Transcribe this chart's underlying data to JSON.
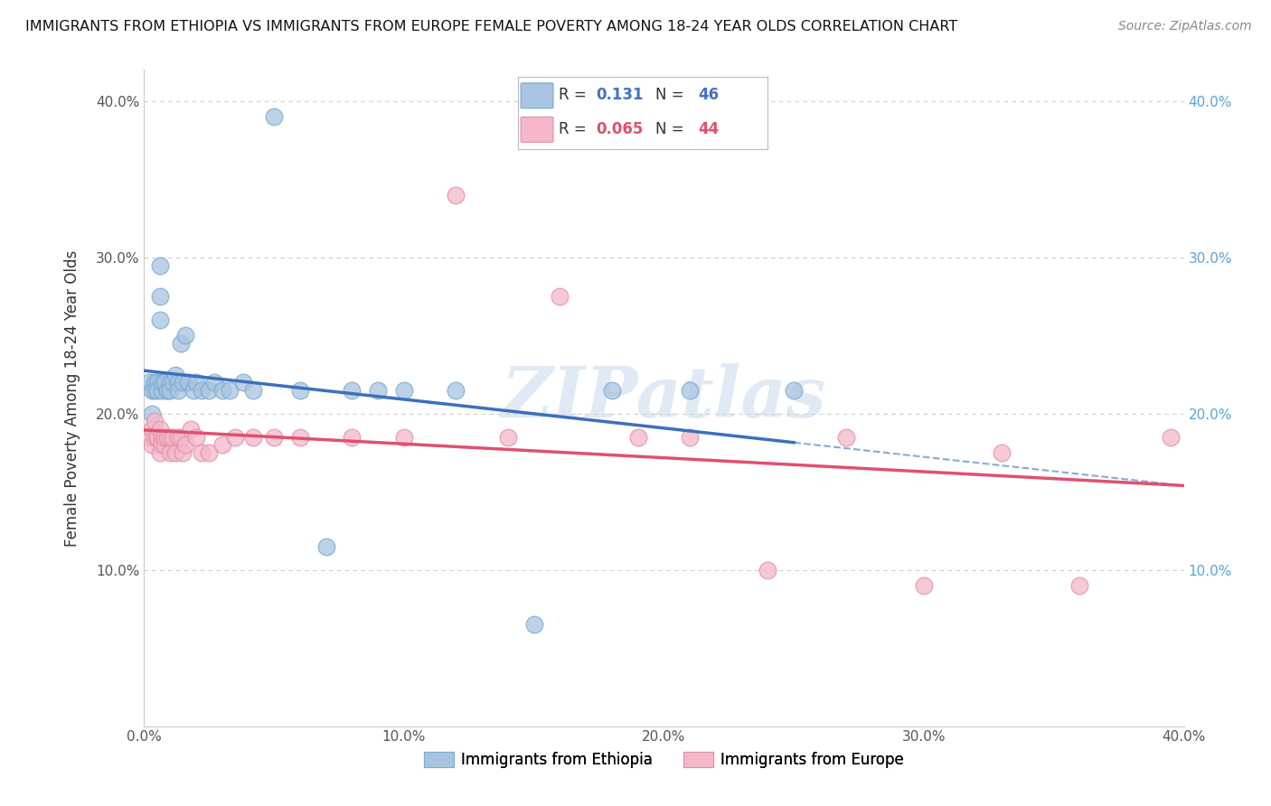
{
  "title": "IMMIGRANTS FROM ETHIOPIA VS IMMIGRANTS FROM EUROPE FEMALE POVERTY AMONG 18-24 YEAR OLDS CORRELATION CHART",
  "source": "Source: ZipAtlas.com",
  "ylabel": "Female Poverty Among 18-24 Year Olds",
  "xlim": [
    0.0,
    0.4
  ],
  "ylim": [
    0.0,
    0.42
  ],
  "x_ticks": [
    0.0,
    0.1,
    0.2,
    0.3,
    0.4
  ],
  "x_tick_labels": [
    "0.0%",
    "10.0%",
    "20.0%",
    "30.0%",
    "40.0%"
  ],
  "y_ticks": [
    0.1,
    0.2,
    0.3,
    0.4
  ],
  "y_tick_labels": [
    "10.0%",
    "20.0%",
    "30.0%",
    "40.0%"
  ],
  "eth_R": "0.131",
  "eth_N": "46",
  "eur_R": "0.065",
  "eur_N": "44",
  "eth_color": "#a8c4e0",
  "eth_edge": "#7aaad0",
  "eur_color": "#f4b8c8",
  "eur_edge": "#e090a8",
  "eth_line_color": "#3c6fbe",
  "eur_line_color": "#e05070",
  "grid_color": "#cccccc",
  "background_color": "#ffffff",
  "watermark": "ZIPatlas",
  "ethiopia_x": [
    0.002,
    0.003,
    0.003,
    0.004,
    0.004,
    0.005,
    0.005,
    0.006,
    0.006,
    0.006,
    0.007,
    0.007,
    0.008,
    0.008,
    0.009,
    0.009,
    0.01,
    0.01,
    0.011,
    0.012,
    0.013,
    0.013,
    0.014,
    0.015,
    0.016,
    0.017,
    0.019,
    0.02,
    0.022,
    0.025,
    0.027,
    0.03,
    0.033,
    0.038,
    0.042,
    0.05,
    0.06,
    0.07,
    0.08,
    0.09,
    0.1,
    0.12,
    0.15,
    0.18,
    0.21,
    0.25
  ],
  "ethiopia_y": [
    0.22,
    0.215,
    0.2,
    0.22,
    0.215,
    0.22,
    0.215,
    0.295,
    0.275,
    0.26,
    0.215,
    0.22,
    0.22,
    0.22,
    0.215,
    0.215,
    0.22,
    0.215,
    0.22,
    0.225,
    0.22,
    0.215,
    0.245,
    0.22,
    0.25,
    0.22,
    0.215,
    0.22,
    0.215,
    0.215,
    0.22,
    0.215,
    0.215,
    0.22,
    0.215,
    0.39,
    0.215,
    0.115,
    0.215,
    0.215,
    0.215,
    0.215,
    0.065,
    0.215,
    0.215,
    0.215
  ],
  "europe_x": [
    0.002,
    0.003,
    0.003,
    0.004,
    0.004,
    0.005,
    0.005,
    0.006,
    0.006,
    0.007,
    0.007,
    0.008,
    0.008,
    0.009,
    0.01,
    0.01,
    0.011,
    0.012,
    0.013,
    0.014,
    0.015,
    0.016,
    0.018,
    0.02,
    0.022,
    0.025,
    0.03,
    0.035,
    0.042,
    0.05,
    0.06,
    0.08,
    0.1,
    0.12,
    0.14,
    0.16,
    0.19,
    0.21,
    0.24,
    0.27,
    0.3,
    0.33,
    0.36,
    0.395
  ],
  "europe_y": [
    0.185,
    0.18,
    0.19,
    0.185,
    0.195,
    0.185,
    0.185,
    0.19,
    0.175,
    0.185,
    0.18,
    0.18,
    0.185,
    0.185,
    0.185,
    0.175,
    0.185,
    0.175,
    0.185,
    0.185,
    0.175,
    0.18,
    0.19,
    0.185,
    0.175,
    0.175,
    0.18,
    0.185,
    0.185,
    0.185,
    0.185,
    0.185,
    0.185,
    0.34,
    0.185,
    0.275,
    0.185,
    0.185,
    0.1,
    0.185,
    0.09,
    0.175,
    0.09,
    0.185
  ]
}
